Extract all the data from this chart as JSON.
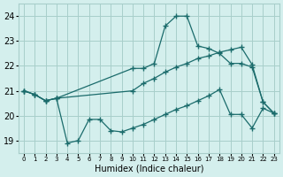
{
  "xlabel": "Humidex (Indice chaleur)",
  "background_color": "#d4efed",
  "grid_color": "#a8ceca",
  "line_color": "#1a6b6b",
  "xlim": [
    -0.5,
    23.5
  ],
  "ylim": [
    18.5,
    24.5
  ],
  "yticks": [
    19,
    20,
    21,
    22,
    23,
    24
  ],
  "xticks": [
    0,
    1,
    2,
    3,
    4,
    5,
    6,
    7,
    8,
    9,
    10,
    11,
    12,
    13,
    14,
    15,
    16,
    17,
    18,
    19,
    20,
    21,
    22,
    23
  ],
  "line1_x": [
    0,
    1,
    2,
    3,
    10,
    11,
    12,
    13,
    14,
    15,
    16,
    17,
    18,
    19,
    20,
    21,
    22,
    23
  ],
  "line1_y": [
    21.0,
    20.85,
    20.6,
    20.7,
    21.9,
    21.9,
    22.1,
    23.6,
    24.0,
    24.0,
    22.8,
    22.7,
    22.5,
    22.1,
    22.1,
    21.95,
    20.55,
    20.1
  ],
  "line2_x": [
    0,
    1,
    2,
    3,
    10,
    11,
    12,
    13,
    14,
    15,
    16,
    17,
    18,
    19,
    20,
    21,
    22,
    23
  ],
  "line2_y": [
    21.0,
    20.85,
    20.6,
    20.7,
    21.0,
    21.3,
    21.5,
    21.75,
    21.95,
    22.1,
    22.3,
    22.4,
    22.55,
    22.65,
    22.75,
    22.05,
    20.55,
    20.1
  ],
  "line3_x": [
    0,
    1,
    2,
    3,
    4,
    5,
    6,
    7,
    8,
    9,
    10,
    11,
    12,
    13,
    14,
    15,
    16,
    17,
    18,
    19,
    20,
    21,
    22,
    23
  ],
  "line3_y": [
    21.0,
    20.85,
    20.6,
    20.7,
    18.9,
    19.0,
    19.85,
    19.85,
    19.4,
    19.35,
    19.5,
    19.65,
    19.85,
    20.05,
    20.25,
    20.4,
    20.6,
    20.8,
    21.05,
    20.05,
    20.05,
    19.5,
    20.3,
    20.1
  ]
}
